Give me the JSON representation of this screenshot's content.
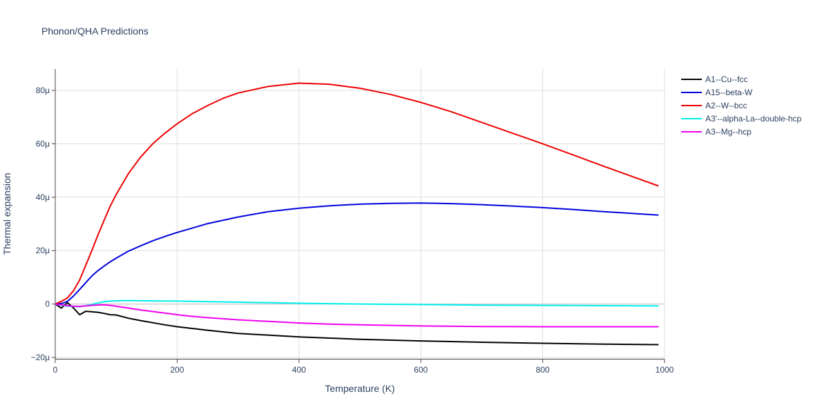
{
  "chart_data": {
    "type": "line",
    "title": "Phonon/QHA Predictions",
    "xlabel": "Temperature (K)",
    "ylabel": "Thermal expansion",
    "xlim": [
      0,
      1000
    ],
    "ylim": [
      -20.5,
      88
    ],
    "x_ticks": [
      0,
      200,
      400,
      600,
      800,
      1000
    ],
    "x_tick_labels": [
      "0",
      "200",
      "400",
      "600",
      "800",
      "1000"
    ],
    "y_ticks": [
      -20,
      0,
      20,
      40,
      60,
      80
    ],
    "y_tick_labels": [
      "−20μ",
      "0",
      "20μ",
      "40μ",
      "60μ",
      "80μ"
    ],
    "grid": true,
    "legend_position": "right",
    "series": [
      {
        "name": "A1--Cu--fcc",
        "color": "#000000",
        "x": [
          0,
          10,
          20,
          30,
          40,
          50,
          60,
          70,
          80,
          90,
          100,
          120,
          140,
          160,
          180,
          200,
          250,
          300,
          400,
          500,
          600,
          700,
          800,
          900,
          990
        ],
        "y": [
          0,
          -1.5,
          0.5,
          -1.5,
          -4,
          -2.7,
          -2.9,
          -3.1,
          -3.5,
          -4,
          -4.1,
          -5.3,
          -6.2,
          -7,
          -7.8,
          -8.5,
          -9.8,
          -11,
          -12.3,
          -13.2,
          -13.8,
          -14.3,
          -14.7,
          -15,
          -15.2
        ]
      },
      {
        "name": "A15--beta-W",
        "color": "#0000dd",
        "x": [
          0,
          10,
          20,
          30,
          40,
          50,
          60,
          70,
          80,
          90,
          100,
          120,
          140,
          160,
          180,
          200,
          250,
          300,
          350,
          400,
          450,
          500,
          550,
          600,
          650,
          700,
          750,
          800,
          850,
          900,
          990
        ],
        "y": [
          0,
          0.2,
          1,
          3,
          5.5,
          8,
          10.5,
          12.5,
          14.2,
          15.8,
          17.2,
          19.8,
          21.8,
          23.7,
          25.3,
          26.8,
          30.1,
          32.6,
          34.6,
          35.9,
          36.8,
          37.4,
          37.7,
          37.8,
          37.6,
          37.2,
          36.7,
          36.1,
          35.4,
          34.6,
          33.3
        ]
      },
      {
        "name": "A2--W--bcc",
        "color": "#ee0000",
        "x": [
          0,
          10,
          20,
          30,
          40,
          50,
          60,
          70,
          80,
          90,
          100,
          120,
          140,
          160,
          180,
          200,
          225,
          250,
          275,
          300,
          350,
          400,
          450,
          500,
          550,
          600,
          650,
          700,
          750,
          800,
          850,
          900,
          950,
          990
        ],
        "y": [
          0,
          1,
          2.3,
          5,
          9,
          14.5,
          20,
          25.8,
          31.3,
          36.6,
          41,
          48.8,
          55,
          60,
          64,
          67.5,
          71.3,
          74.3,
          77,
          79,
          81.5,
          82.7,
          82.3,
          80.8,
          78.5,
          75.5,
          72,
          68,
          64,
          60,
          55.8,
          51.6,
          47.5,
          44.2
        ]
      },
      {
        "name": "A3'--alpha-La--double-hcp",
        "color": "#00eeee",
        "x": [
          0,
          20,
          40,
          60,
          70,
          80,
          90,
          100,
          120,
          150,
          200,
          300,
          400,
          500,
          600,
          700,
          800,
          900,
          990
        ],
        "y": [
          0,
          -0.8,
          -1,
          -0.2,
          0.4,
          0.9,
          1.1,
          1.2,
          1.3,
          1.2,
          1.1,
          0.7,
          0.3,
          0,
          -0.2,
          -0.4,
          -0.5,
          -0.6,
          -0.7
        ]
      },
      {
        "name": "A3--Mg--hcp",
        "color": "#ee00ee",
        "x": [
          0,
          10,
          20,
          30,
          40,
          50,
          60,
          70,
          80,
          90,
          100,
          120,
          140,
          160,
          180,
          200,
          225,
          250,
          300,
          350,
          400,
          450,
          500,
          600,
          700,
          800,
          900,
          990
        ],
        "y": [
          0,
          -0.3,
          -0.6,
          -0.8,
          -0.9,
          -0.7,
          -0.5,
          -0.35,
          -0.3,
          -0.5,
          -0.8,
          -1.5,
          -2.2,
          -2.8,
          -3.4,
          -4,
          -4.6,
          -5.1,
          -5.9,
          -6.5,
          -7.1,
          -7.5,
          -7.8,
          -8.2,
          -8.4,
          -8.5,
          -8.5,
          -8.5
        ]
      }
    ]
  }
}
